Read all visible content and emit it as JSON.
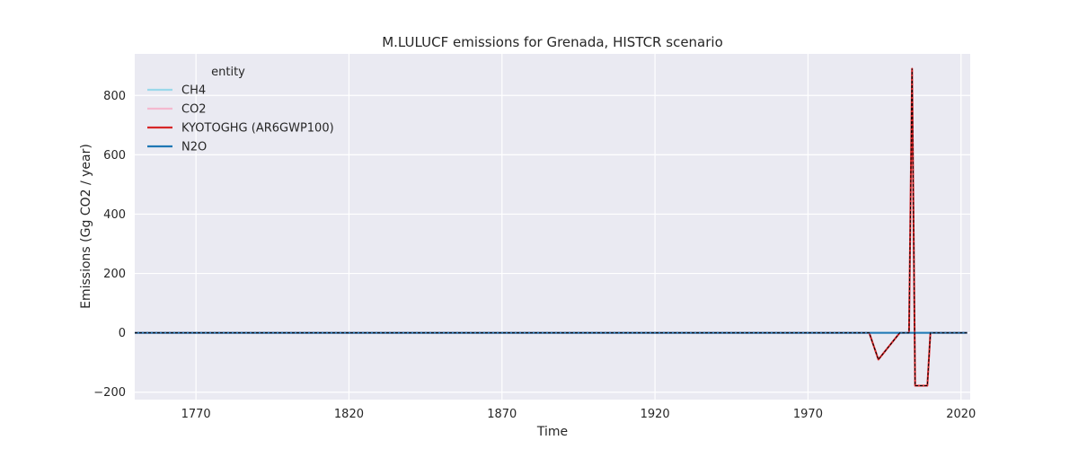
{
  "chart_data": {
    "type": "line",
    "title": "M.LULUCF emissions for Grenada, HISTCR scenario",
    "xlabel": "Time",
    "ylabel": "Emissions (Gg CO2 / year)",
    "xlim": [
      1750,
      2023
    ],
    "ylim": [
      -225,
      940
    ],
    "xticks": [
      1770,
      1820,
      1870,
      1920,
      1970,
      2020
    ],
    "yticks": [
      -200,
      0,
      200,
      400,
      600,
      800
    ],
    "grid": true,
    "legend": {
      "title": "entity",
      "placement": "top-left"
    },
    "series": [
      {
        "name": "CH4",
        "color": "#9ad8ea",
        "points": [
          [
            1750,
            0
          ],
          [
            1990,
            0
          ],
          [
            2022,
            0
          ]
        ]
      },
      {
        "name": "CO2",
        "color": "#f4b9cf",
        "points": [
          [
            1750,
            0
          ],
          [
            1990,
            0
          ],
          [
            1993,
            -90
          ],
          [
            2000,
            0
          ],
          [
            2003,
            0
          ],
          [
            2004,
            890
          ],
          [
            2005,
            -178
          ],
          [
            2009,
            -178
          ],
          [
            2010,
            0
          ],
          [
            2022,
            0
          ]
        ]
      },
      {
        "name": "KYOTOGHG (AR6GWP100)",
        "color": "#d62728",
        "points": [
          [
            1750,
            0
          ],
          [
            1990,
            0
          ],
          [
            1993,
            -90
          ],
          [
            2000,
            0
          ],
          [
            2003,
            0
          ],
          [
            2004,
            890
          ],
          [
            2005,
            -178
          ],
          [
            2009,
            -178
          ],
          [
            2010,
            0
          ],
          [
            2022,
            0
          ]
        ]
      },
      {
        "name": "N2O",
        "color": "#1f77b4",
        "points": [
          [
            1750,
            0
          ],
          [
            1990,
            0
          ],
          [
            2022,
            0
          ]
        ]
      }
    ],
    "overlay_dashed": {
      "color": "#000000",
      "points": [
        [
          1750,
          0
        ],
        [
          1990,
          0
        ],
        [
          1993,
          -90
        ],
        [
          2000,
          0
        ],
        [
          2003,
          0
        ],
        [
          2004,
          890
        ],
        [
          2005,
          -178
        ],
        [
          2009,
          -178
        ],
        [
          2010,
          0
        ],
        [
          2022,
          0
        ]
      ]
    }
  }
}
